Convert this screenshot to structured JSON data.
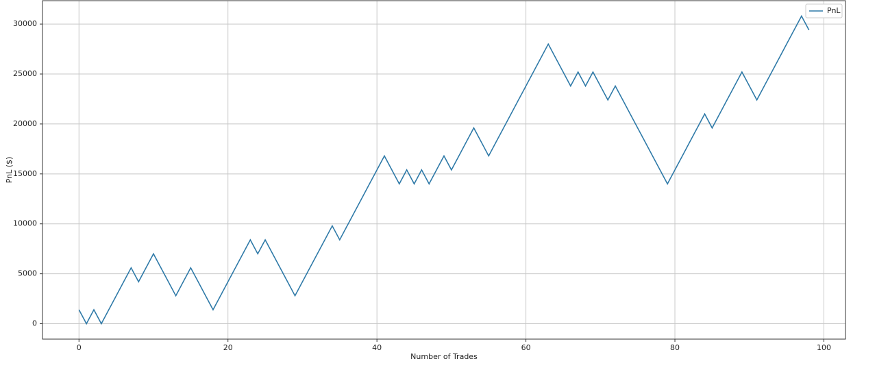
{
  "chart_data": {
    "type": "line",
    "xlabel": "Number of Trades",
    "ylabel": "PnL ($)",
    "x": [
      0,
      1,
      2,
      3,
      4,
      5,
      6,
      7,
      8,
      9,
      10,
      11,
      12,
      13,
      14,
      15,
      16,
      17,
      18,
      19,
      20,
      21,
      22,
      23,
      24,
      25,
      26,
      27,
      28,
      29,
      30,
      31,
      32,
      33,
      34,
      35,
      36,
      37,
      38,
      39,
      40,
      41,
      42,
      43,
      44,
      45,
      46,
      47,
      48,
      49,
      50,
      51,
      52,
      53,
      54,
      55,
      56,
      57,
      58,
      59,
      60,
      61,
      62,
      63,
      64,
      65,
      66,
      67,
      68,
      69,
      70,
      71,
      72,
      73,
      74,
      75,
      76,
      77,
      78,
      79,
      80,
      81,
      82,
      83,
      84,
      85,
      86,
      87,
      88,
      89,
      90,
      91,
      92,
      93,
      94,
      95,
      96,
      97,
      98
    ],
    "series": [
      {
        "name": "PnL",
        "color": "#2f7aa8",
        "values": [
          1400,
          0,
          1400,
          0,
          1400,
          2800,
          4200,
          5600,
          4200,
          5600,
          7000,
          5600,
          4200,
          2800,
          4200,
          5600,
          4200,
          2800,
          1400,
          2800,
          4200,
          5600,
          7000,
          8400,
          7000,
          8400,
          7000,
          5600,
          4200,
          2800,
          4200,
          5600,
          7000,
          8400,
          9800,
          8400,
          9800,
          11200,
          12600,
          14000,
          15400,
          16800,
          15400,
          14000,
          15400,
          14000,
          15400,
          14000,
          15400,
          16800,
          15400,
          16800,
          18200,
          19600,
          18200,
          16800,
          18200,
          19600,
          21000,
          22400,
          23800,
          25200,
          26600,
          28000,
          26600,
          25200,
          23800,
          25200,
          23800,
          25200,
          23800,
          22400,
          23800,
          22400,
          21000,
          19600,
          18200,
          16800,
          15400,
          14000,
          15400,
          16800,
          18200,
          19600,
          21000,
          19600,
          21000,
          22400,
          23800,
          25200,
          23800,
          22400,
          23800,
          25200,
          26600,
          28000,
          29400,
          30800,
          29400
        ]
      }
    ],
    "xlim": [
      -4.9,
      102.9
    ],
    "xticks": [
      0,
      20,
      40,
      60,
      80,
      100
    ],
    "ylim": [
      -1540,
      32340
    ],
    "yticks": [
      0,
      5000,
      10000,
      15000,
      20000,
      25000,
      30000
    ],
    "grid": true,
    "legend": "upper right"
  }
}
